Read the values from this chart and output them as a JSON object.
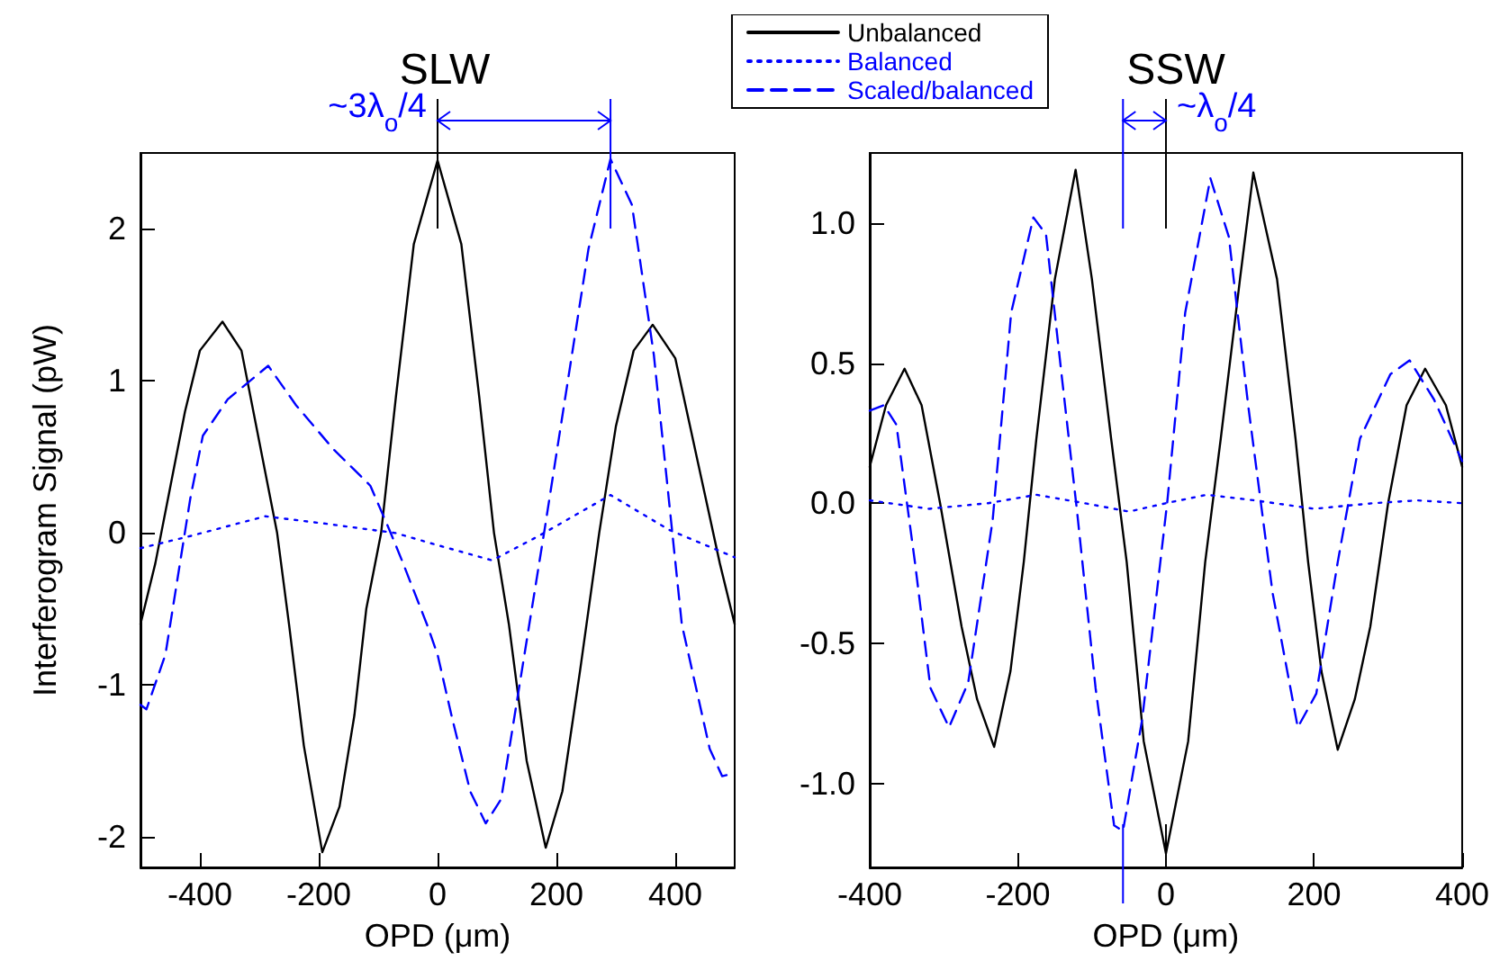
{
  "chart_data": [
    {
      "type": "line",
      "title": "SLW",
      "xlabel": "OPD (μm)",
      "ylabel": "Interferogram Signal (pW)",
      "xlim": [
        -500,
        500
      ],
      "xticks": [
        -400,
        -200,
        0,
        200,
        400
      ],
      "ylim": [
        -2.2,
        2.5
      ],
      "yticks": [
        -2,
        -1,
        0,
        1,
        2
      ],
      "grid": false,
      "legend": "top right",
      "marker": "none",
      "annotations": [
        "~3λ$_{o}$/4"
      ],
      "series": [
        {
          "name": "Unbalanced",
          "color": "#000000",
          "line_style": "solid",
          "x": [
            -500,
            -475,
            -450,
            -425,
            -400,
            -362,
            -330,
            -300,
            -270,
            -250,
            -225,
            -194,
            -165,
            -140,
            -120,
            -95,
            -70,
            -40,
            0,
            40,
            70,
            95,
            120,
            150,
            182,
            210,
            240,
            272,
            300,
            330,
            362,
            400,
            425,
            450,
            475,
            500
          ],
          "values": [
            -0.6,
            -0.2,
            0.3,
            0.8,
            1.2,
            1.39,
            1.2,
            0.6,
            0.0,
            -0.6,
            -1.4,
            -2.1,
            -1.8,
            -1.2,
            -0.5,
            0.0,
            0.9,
            1.9,
            2.45,
            1.9,
            0.9,
            0.0,
            -0.6,
            -1.5,
            -2.07,
            -1.7,
            -0.9,
            0.0,
            0.7,
            1.2,
            1.37,
            1.15,
            0.7,
            0.25,
            -0.2,
            -0.6
          ]
        },
        {
          "name": "Balanced",
          "color": "#0000ff",
          "line_style": "dotted",
          "x": [
            -500,
            -416,
            -290,
            -186,
            -71,
            0,
            92,
            170,
            291,
            390,
            500
          ],
          "values": [
            -0.1,
            -0.02,
            0.11,
            0.06,
            0.0,
            -0.08,
            -0.18,
            -0.02,
            0.25,
            0.02,
            -0.16
          ]
        },
        {
          "name": "Scaled/balanced",
          "color": "#0000ff",
          "line_style": "dashed",
          "x": [
            -500,
            -490,
            -458,
            -416,
            -395,
            -353,
            -285,
            -238,
            -175,
            -123,
            -113,
            -81,
            -60,
            -18,
            0,
            24,
            55,
            81,
            107,
            180,
            254,
            291,
            327,
            364,
            411,
            458,
            479,
            500
          ],
          "values": [
            -1.13,
            -1.16,
            -0.8,
            0.23,
            0.64,
            0.88,
            1.1,
            0.84,
            0.55,
            0.35,
            0.31,
            0.02,
            -0.18,
            -0.6,
            -0.8,
            -1.21,
            -1.7,
            -1.91,
            -1.75,
            0.02,
            1.87,
            2.46,
            2.16,
            1.17,
            -0.6,
            -1.42,
            -1.6,
            -1.58
          ]
        }
      ]
    },
    {
      "type": "line",
      "title": "SSW",
      "xlabel": "OPD (μm)",
      "xlim": [
        -400,
        400
      ],
      "xticks": [
        -400,
        -200,
        0,
        200,
        400
      ],
      "ylim": [
        -1.3,
        1.25
      ],
      "yticks": [
        {
          "value": -1,
          "label": "-1.0"
        },
        {
          "value": -0.5,
          "label": "-0.5"
        },
        {
          "value": 0,
          "label": "0.0"
        },
        {
          "value": 0.5,
          "label": "0.5"
        },
        {
          "value": 1,
          "label": "1.0"
        }
      ],
      "grid": false,
      "legend": false,
      "marker": "none",
      "annotations": [
        "~λ$_{o}$/4"
      ],
      "series": [
        {
          "color": "#000000",
          "line_style": "solid",
          "x": [
            -400,
            -378,
            -353,
            -330,
            -305,
            -276,
            -255,
            -232,
            -210,
            -192,
            -175,
            -150,
            -122,
            -100,
            -74,
            -53,
            -30,
            0,
            30,
            53,
            74,
            100,
            118,
            150,
            175,
            192,
            210,
            232,
            255,
            276,
            300,
            325,
            350,
            378,
            400
          ],
          "values": [
            0.13,
            0.35,
            0.48,
            0.35,
            0.0,
            -0.44,
            -0.7,
            -0.87,
            -0.6,
            -0.21,
            0.23,
            0.8,
            1.19,
            0.8,
            0.23,
            -0.21,
            -0.85,
            -1.25,
            -0.85,
            -0.21,
            0.23,
            0.8,
            1.18,
            0.8,
            0.23,
            -0.21,
            -0.6,
            -0.88,
            -0.7,
            -0.44,
            0.0,
            0.35,
            0.48,
            0.35,
            0.13
          ]
        },
        {
          "color": "#0000ff",
          "line_style": "dotted",
          "x": [
            -400,
            -320,
            -240,
            -175,
            -110,
            -50,
            0,
            55,
            120,
            200,
            280,
            340,
            400
          ],
          "values": [
            0.01,
            -0.02,
            0.0,
            0.03,
            0.0,
            -0.03,
            0.0,
            0.03,
            0.01,
            -0.02,
            0.0,
            0.01,
            0.0
          ]
        },
        {
          "color": "#0000ff",
          "line_style": "dashed",
          "x": [
            -400,
            -381,
            -364,
            -339,
            -318,
            -293,
            -267,
            -234,
            -209,
            -179,
            -162,
            -141,
            -120,
            -95,
            -70,
            -58,
            -32,
            2,
            26,
            60,
            85,
            111,
            144,
            178,
            203,
            232,
            262,
            303,
            329,
            362,
            400
          ],
          "values": [
            0.33,
            0.35,
            0.28,
            -0.21,
            -0.66,
            -0.8,
            -0.64,
            -0.06,
            0.68,
            1.02,
            0.96,
            0.46,
            -0.03,
            -0.66,
            -1.15,
            -1.17,
            -0.77,
            0.01,
            0.68,
            1.16,
            0.95,
            0.35,
            -0.32,
            -0.8,
            -0.68,
            -0.21,
            0.23,
            0.46,
            0.51,
            0.37,
            0.15
          ]
        }
      ]
    }
  ]
}
